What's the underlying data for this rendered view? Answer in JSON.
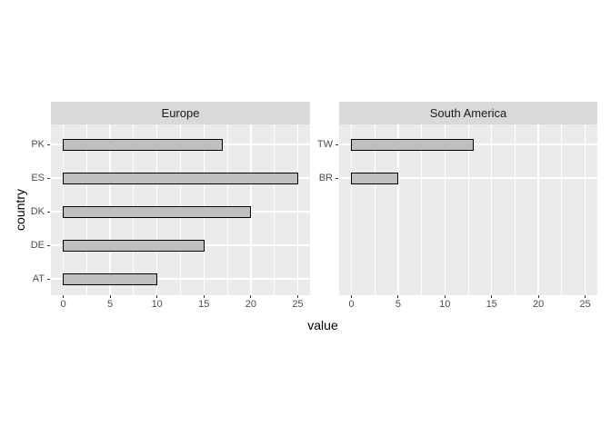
{
  "chart_data": {
    "type": "bar",
    "orientation": "horizontal",
    "title": "",
    "xlabel": "value",
    "ylabel": "country",
    "xlim": [
      0,
      25
    ],
    "x_major_ticks": [
      0,
      5,
      10,
      15,
      20,
      25
    ],
    "x_minor_ticks": [
      2.5,
      7.5,
      12.5,
      17.5,
      22.5
    ],
    "grid": true,
    "legend": "none",
    "facets": [
      {
        "label": "Europe",
        "categories": [
          "PK",
          "ES",
          "DK",
          "DE",
          "AT"
        ],
        "values": [
          17,
          25,
          20,
          15,
          10
        ]
      },
      {
        "label": "South America",
        "categories": [
          "TW",
          "BR"
        ],
        "values": [
          13,
          5
        ]
      }
    ],
    "colors": {
      "panel_background": "#ebebeb",
      "strip_background": "#d9d9d9",
      "grid_line": "#ffffff",
      "bar_fill": "#bfbfbf",
      "bar_border": "#000000",
      "tick_label": "#4d4d4d",
      "tick_mark": "#333333",
      "strip_label": "#1a1a1a",
      "axis_title": "#000000"
    }
  }
}
